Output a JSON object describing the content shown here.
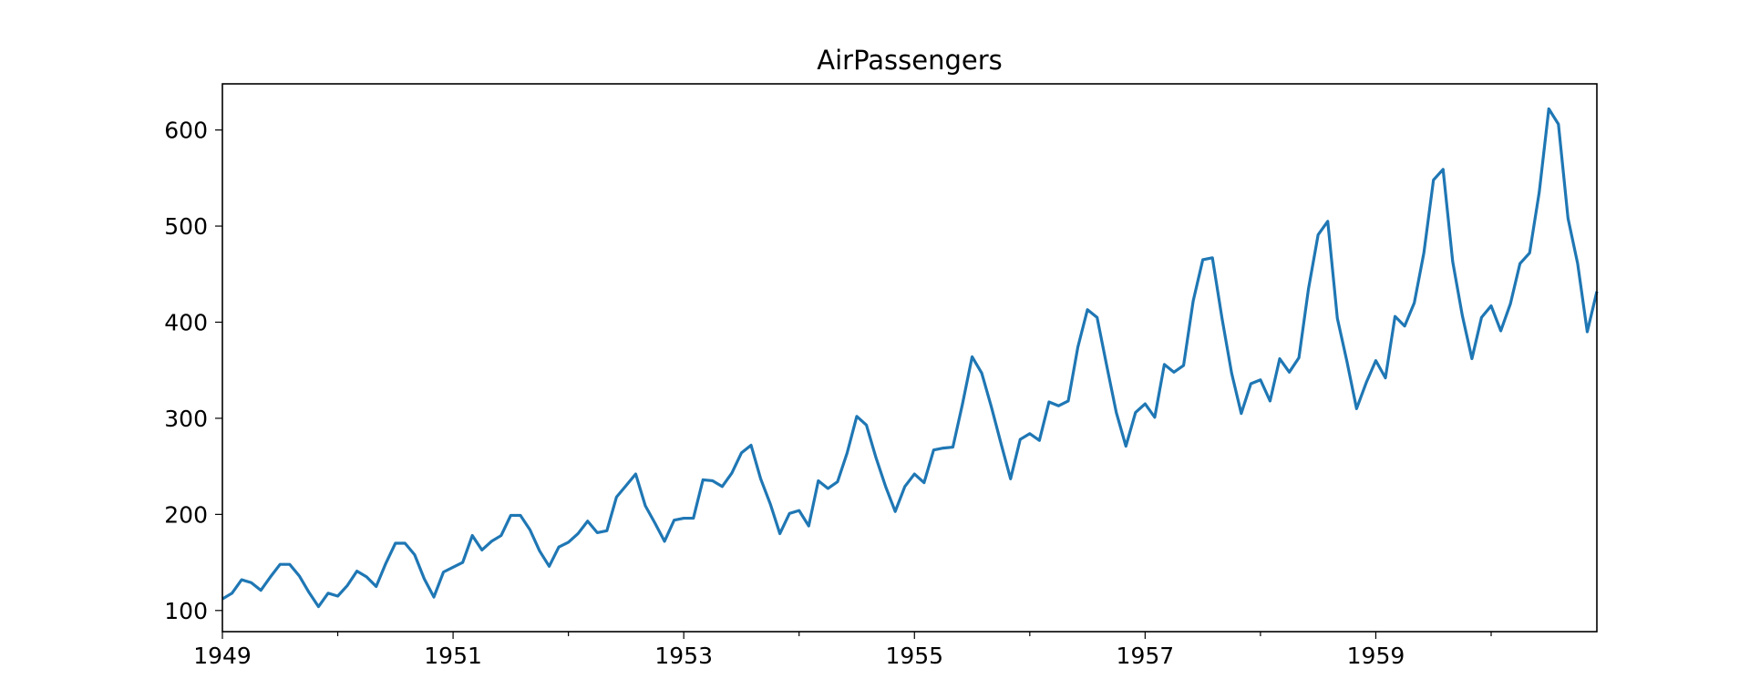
{
  "chart_data": {
    "type": "line",
    "title": "AirPassengers",
    "xlabel": "",
    "ylabel": "",
    "x_start": "1949-01",
    "x_frequency": "monthly",
    "xlim": [
      "1949-01",
      "1960-12"
    ],
    "ylim": [
      78,
      648
    ],
    "x_ticks": [
      "1949",
      "1951",
      "1953",
      "1955",
      "1957",
      "1959"
    ],
    "y_ticks": [
      100,
      200,
      300,
      400,
      500,
      600
    ],
    "grid": false,
    "legend": "none",
    "series": [
      {
        "color": "#1f77b4",
        "values": [
          112,
          118,
          132,
          129,
          121,
          135,
          148,
          148,
          136,
          119,
          104,
          118,
          115,
          126,
          141,
          135,
          125,
          149,
          170,
          170,
          158,
          133,
          114,
          140,
          145,
          150,
          178,
          163,
          172,
          178,
          199,
          199,
          184,
          162,
          146,
          166,
          171,
          180,
          193,
          181,
          183,
          218,
          230,
          242,
          209,
          191,
          172,
          194,
          196,
          196,
          236,
          235,
          229,
          243,
          264,
          272,
          237,
          211,
          180,
          201,
          204,
          188,
          235,
          227,
          234,
          264,
          302,
          293,
          259,
          229,
          203,
          229,
          242,
          233,
          267,
          269,
          270,
          315,
          364,
          347,
          312,
          274,
          237,
          278,
          284,
          277,
          317,
          313,
          318,
          374,
          413,
          405,
          355,
          306,
          271,
          306,
          315,
          301,
          356,
          348,
          355,
          422,
          465,
          467,
          404,
          347,
          305,
          336,
          340,
          318,
          362,
          348,
          363,
          435,
          491,
          505,
          404,
          359,
          310,
          337,
          360,
          342,
          406,
          396,
          420,
          472,
          548,
          559,
          463,
          407,
          362,
          405,
          417,
          391,
          419,
          461,
          472,
          535,
          622,
          606,
          508,
          461,
          390,
          432
        ]
      }
    ]
  }
}
